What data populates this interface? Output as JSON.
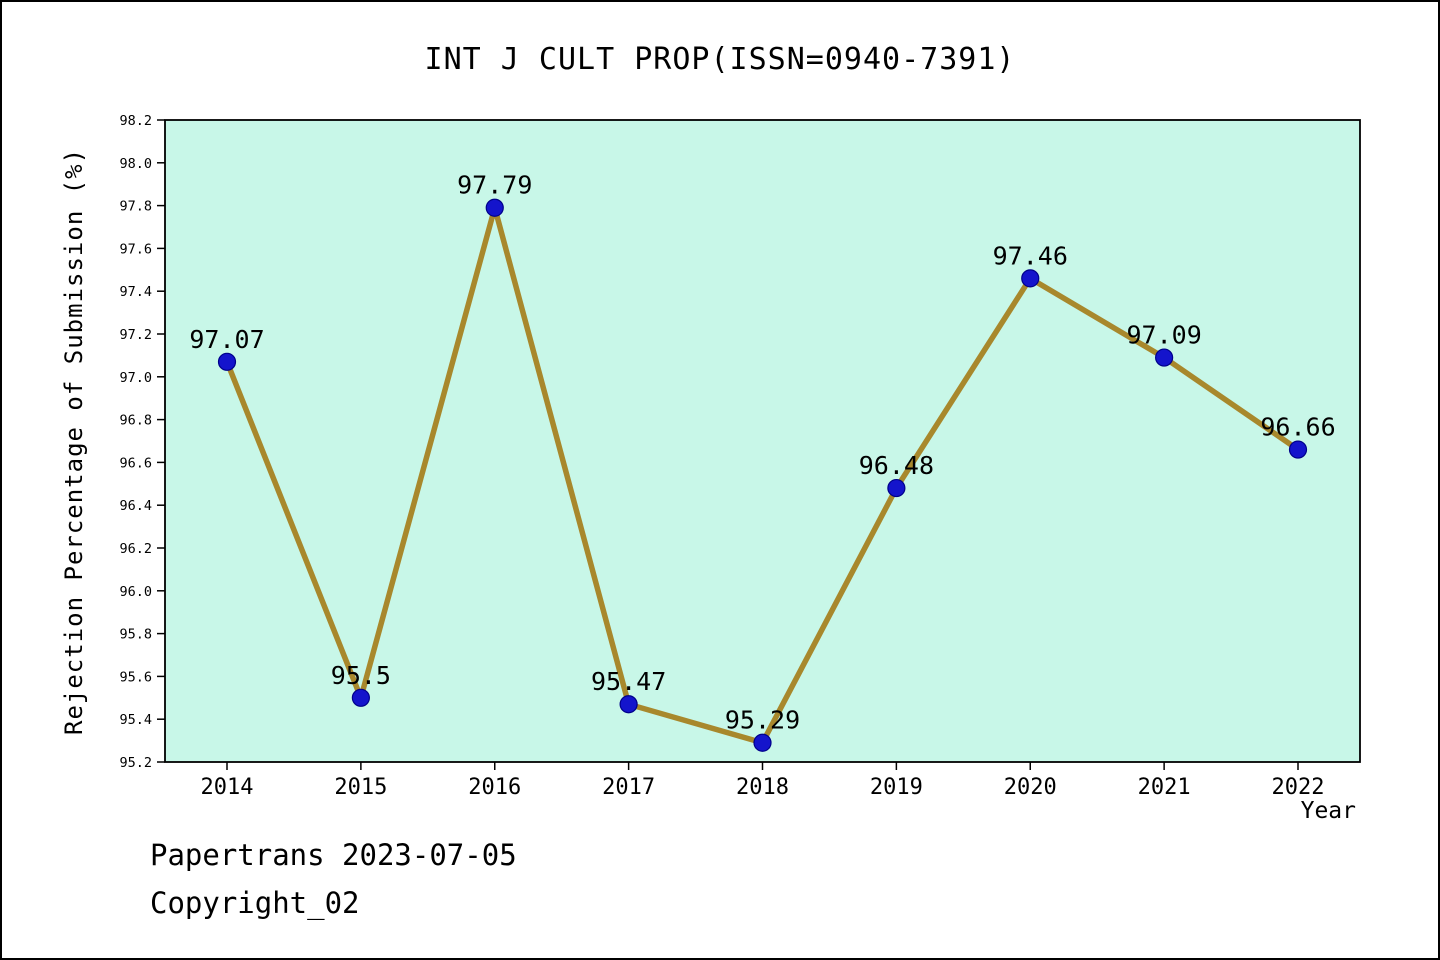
{
  "chart_data": {
    "type": "line",
    "title": "INT J CULT PROP(ISSN=0940-7391)",
    "xlabel": "Year",
    "ylabel": "Rejection Percentage of Submission (%)",
    "categories": [
      "2014",
      "2015",
      "2016",
      "2017",
      "2018",
      "2019",
      "2020",
      "2021",
      "2022"
    ],
    "series": [
      {
        "name": "Rejection Percentage of Submission",
        "values": [
          97.07,
          95.5,
          97.79,
          95.47,
          95.29,
          96.48,
          97.46,
          97.09,
          96.66
        ]
      }
    ],
    "point_labels": [
      "97.07",
      "95.5",
      "97.79",
      "95.47",
      "95.29",
      "96.48",
      "97.46",
      "97.09",
      "96.66"
    ],
    "ylim": [
      95.2,
      98.2
    ],
    "ytick_step": 0.2,
    "grid": false,
    "legend": "none",
    "colors": {
      "line": "#a8882c",
      "marker": "#1414cc",
      "marker_edge": "#00008b",
      "plot_bg": "#c8f7e8",
      "page_bg": "#ffffff",
      "text": "#000000"
    }
  },
  "footer": {
    "line1": "Papertrans 2023-07-05",
    "line2": "Copyright_02"
  }
}
